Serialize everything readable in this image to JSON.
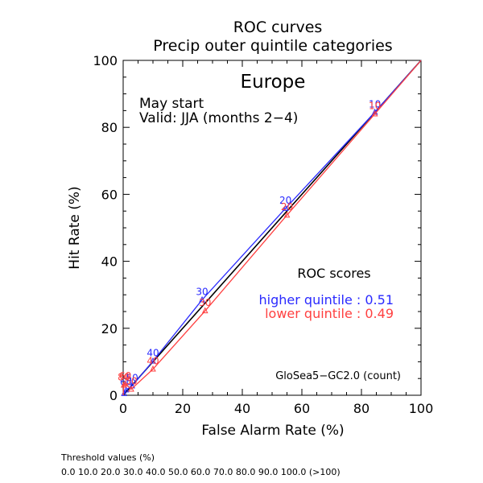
{
  "chart_data": {
    "type": "line",
    "title": "ROC curves",
    "subtitle": "Precip outer quintile categories",
    "region": "Europe",
    "start": "May start",
    "valid": "Valid: JJA (months 2−4)",
    "xlabel": "False Alarm Rate (%)",
    "ylabel": "Hit Rate (%)",
    "xlim": [
      0,
      100
    ],
    "ylim": [
      0,
      100
    ],
    "xticks": [
      "0",
      "20",
      "40",
      "60",
      "80",
      "100"
    ],
    "yticks": [
      "0",
      "20",
      "40",
      "60",
      "80",
      "100"
    ],
    "scores_title": "ROC scores",
    "model": "GloSea5−GC2.0 (count)",
    "diagonal": [
      [
        0,
        0
      ],
      [
        100,
        100
      ]
    ],
    "series": [
      {
        "name": "higher quintile",
        "score_label": "higher quintile : 0.51",
        "color": "#2a2aff",
        "x": [
          0,
          0.3,
          1.0,
          3.0,
          10.0,
          26.5,
          54.5,
          84.5,
          100
        ],
        "y": [
          0,
          0.5,
          1.6,
          2.8,
          10.2,
          28.5,
          55.8,
          84.5,
          100
        ],
        "labels": [
          "",
          "",
          "60",
          "50",
          "40",
          "30",
          "20",
          "10",
          ""
        ]
      },
      {
        "name": "lower quintile",
        "score_label": "lower quintile : 0.49",
        "color": "#ff4040",
        "x": [
          0,
          0.2,
          0.7,
          2.7,
          10.0,
          27.5,
          55.0,
          84.5,
          100
        ],
        "y": [
          0,
          3.0,
          3.4,
          1.8,
          7.8,
          25.2,
          53.8,
          84.0,
          100
        ],
        "labels": [
          "",
          "80",
          "60",
          "50",
          "40",
          "30",
          "20",
          "10",
          ""
        ]
      }
    ]
  },
  "footer": {
    "heading": "Threshold values (%)",
    "values": "0.0 10.0 20.0 30.0 40.0 50.0 60.0 70.0 80.0 90.0 100.0 (>100)"
  }
}
